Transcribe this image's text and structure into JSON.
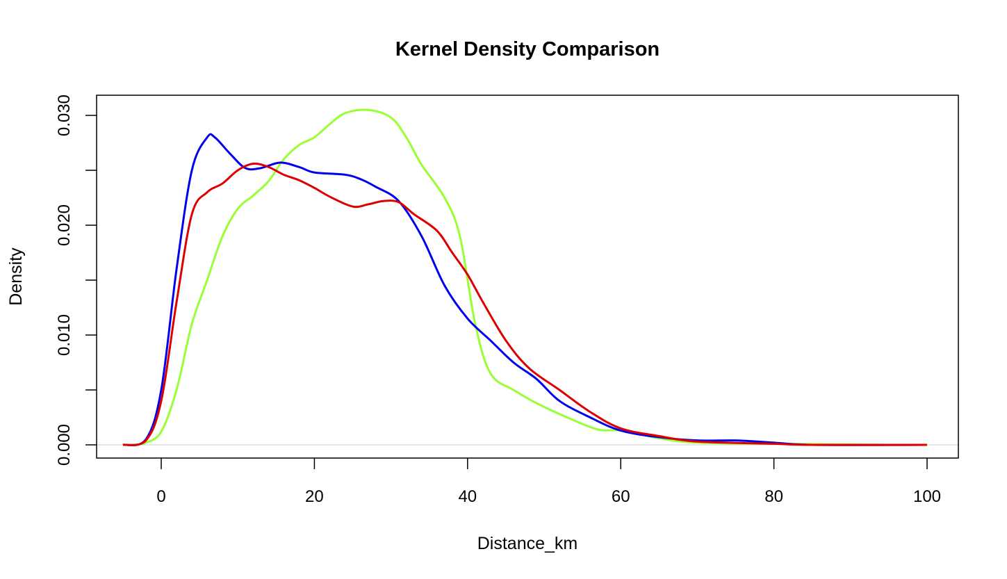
{
  "chart_data": {
    "type": "line",
    "title": "Kernel Density Comparison",
    "xlabel": "Distance_km",
    "ylabel": "Density",
    "xlim": [
      -8.5,
      104
    ],
    "ylim": [
      -0.0012,
      0.0318
    ],
    "x_ticks": [
      0,
      20,
      40,
      60,
      80,
      100
    ],
    "x_tick_labels": [
      "0",
      "20",
      "40",
      "60",
      "80",
      "100"
    ],
    "y_ticks": [
      0,
      0.005,
      0.01,
      0.015,
      0.02,
      0.025,
      0.03
    ],
    "y_tick_labels": [
      "0.000",
      "",
      "0.010",
      "",
      "0.020",
      "",
      "0.030"
    ],
    "grid": false,
    "baseline": {
      "y": 0,
      "color": "#cccccc"
    },
    "series": [
      {
        "color": "#99ff33",
        "x": [
          -4,
          -2,
          0,
          2,
          4,
          6,
          8,
          10,
          12,
          14,
          16,
          18,
          20,
          22,
          24,
          27,
          30,
          32,
          34,
          37,
          39,
          41,
          43,
          46,
          49,
          53,
          57,
          60,
          65,
          70,
          80,
          95
        ],
        "y": [
          0,
          0.0002,
          0.0012,
          0.005,
          0.011,
          0.015,
          0.019,
          0.0215,
          0.0227,
          0.024,
          0.026,
          0.0273,
          0.028,
          0.0292,
          0.0302,
          0.0305,
          0.0298,
          0.028,
          0.0255,
          0.0225,
          0.019,
          0.011,
          0.0065,
          0.005,
          0.0038,
          0.0025,
          0.0014,
          0.0013,
          0.0006,
          0.0002,
          0.0001,
          0
        ]
      },
      {
        "color": "#0000ee",
        "x": [
          -5,
          -2,
          0,
          2,
          4,
          6,
          7,
          9,
          11,
          13,
          15.5,
          18,
          20,
          24,
          26,
          28,
          31,
          34,
          37,
          40,
          43,
          46,
          49,
          52,
          56,
          60,
          65,
          70,
          75,
          80,
          85,
          100
        ],
        "y": [
          0,
          0.0005,
          0.005,
          0.016,
          0.025,
          0.028,
          0.028,
          0.0265,
          0.0252,
          0.0252,
          0.0257,
          0.0253,
          0.0248,
          0.0246,
          0.0242,
          0.0235,
          0.0222,
          0.019,
          0.0145,
          0.0115,
          0.0095,
          0.0075,
          0.006,
          0.004,
          0.0025,
          0.0013,
          0.0007,
          0.0004,
          0.0004,
          0.0002,
          0,
          0
        ]
      },
      {
        "color": "#dd0000",
        "x": [
          -5,
          -2,
          0,
          2,
          4,
          6,
          8,
          10,
          12,
          14,
          16,
          18,
          20,
          22,
          25,
          27,
          29,
          31,
          33,
          36,
          38,
          40,
          42,
          45,
          48,
          52,
          56,
          60,
          65,
          70,
          80,
          85,
          100
        ],
        "y": [
          0,
          0.0004,
          0.004,
          0.013,
          0.021,
          0.023,
          0.0238,
          0.025,
          0.0256,
          0.0253,
          0.0246,
          0.0241,
          0.0234,
          0.0226,
          0.0217,
          0.0219,
          0.0222,
          0.0221,
          0.021,
          0.0195,
          0.0175,
          0.0155,
          0.013,
          0.0095,
          0.007,
          0.005,
          0.003,
          0.0015,
          0.0008,
          0.0003,
          0.0001,
          0,
          0
        ]
      }
    ]
  }
}
